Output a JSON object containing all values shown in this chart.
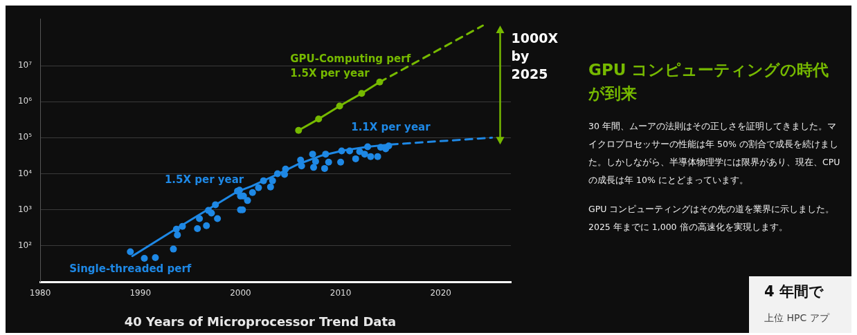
{
  "chart_data": [
    {
      "type": "scatter",
      "title": "40 Years of Microprocessor Trend Data",
      "xlim": [
        1980,
        2027
      ],
      "xticks": [
        1980,
        1990,
        2000,
        2010,
        2020
      ],
      "ylim": [
        10,
        200000000
      ],
      "yticks": [
        {
          "value": 100,
          "label": "10²"
        },
        {
          "value": 1000,
          "label": "10³"
        },
        {
          "value": 10000,
          "label": "10⁴"
        },
        {
          "value": 100000,
          "label": "10⁵"
        },
        {
          "value": 1000000,
          "label": "10⁶"
        },
        {
          "value": 10000000,
          "label": "10⁷"
        }
      ],
      "log": true,
      "grid": "y",
      "legend": false,
      "series": [
        {
          "type": "scatter",
          "name": "Single-threaded perf",
          "color": "#1e88e5",
          "marker": "circle",
          "x": [
            1989,
            1990.4,
            1991.5,
            1993.3,
            1993.6,
            1993.7,
            1994.2,
            1995.7,
            1995.9,
            1996.6,
            1996.8,
            1997.1,
            1997.5,
            1997.7,
            1999.7,
            2000,
            2000,
            1999.9,
            2000.3,
            2000.7,
            2000.2,
            2001.2,
            2001.8,
            2002.3,
            2003,
            2003.2,
            2003.7,
            2004.4,
            2004.5,
            2006,
            2006.1,
            2007.2,
            2007.3,
            2007.5,
            2008.4,
            2008.5,
            2008.8,
            2010,
            2010.1,
            2010.9,
            2011.5,
            2011.9,
            2012.4,
            2012.7,
            2013,
            2013.7,
            2014,
            2014.5,
            2014.8
          ],
          "values": [
            68,
            45,
            47,
            81,
            290,
            200,
            345,
            300,
            570,
            360,
            960,
            810,
            1380,
            570,
            3300,
            1000,
            2400,
            3500,
            2400,
            1800,
            1000,
            3000,
            4100,
            6400,
            4300,
            6400,
            10000,
            9600,
            13500,
            24000,
            16500,
            35000,
            15000,
            22000,
            14000,
            35000,
            21000,
            21000,
            43000,
            43000,
            26000,
            41000,
            35000,
            56000,
            30000,
            30000,
            54000,
            49000,
            59000
          ]
        },
        {
          "type": "line",
          "name": "1.5X per year",
          "color": "#1e88e5",
          "marker": "none",
          "line_style": "solid",
          "x": [
            1989.2,
            1994,
            1999.7,
            2001.1,
            2003.5,
            2005.8,
            2008.1,
            2010.4,
            2012.7,
            2015
          ],
          "values": [
            52,
            350,
            3200,
            4500,
            9100,
            18600,
            32000,
            45000,
            56000,
            65000
          ]
        },
        {
          "type": "line",
          "name": "1.1X per year",
          "color": "#1e88e5",
          "marker": "none",
          "line_style": "dashed",
          "x": [
            2015,
            2025.1
          ],
          "values": [
            65000,
            100000
          ]
        },
        {
          "type": "line",
          "name": "GPU-Computing perf\n1.5X per year",
          "color": "#76b900",
          "marker": "circle",
          "line_style": "solid",
          "x": [
            2005.8,
            2007.8,
            2009.9,
            2012.1,
            2013.9
          ],
          "values": [
            160000,
            330000,
            760000,
            1700000,
            3500000
          ]
        },
        {
          "type": "line",
          "color": "#76b900",
          "marker": "none",
          "line_style": "dashed",
          "x": [
            2013.9,
            2024.2
          ],
          "values": [
            3500000,
            130000000
          ]
        }
      ],
      "annotations": [
        "1000X\nby\n2025"
      ]
    },
    {
      "type": "other",
      "title": "GPU コンピューティングの時代が到来",
      "annotations": [
        "30 年間、ムーアの法則はその正しさを証明してきました。マイクロプロセッサーの性能は年 50% の割合で成長を続けました。しかしながら、半導体物理学には限界があり、現在、CPU の成長は年 10% にとどまっています。",
        "GPU コンピューティングはその先の道を業界に示しました。2025 年までに 1,000 倍の高速化を実現します。"
      ]
    },
    {
      "type": "other",
      "title": "4 年間で",
      "annotations": [
        "上位 HPC アプ"
      ]
    }
  ]
}
